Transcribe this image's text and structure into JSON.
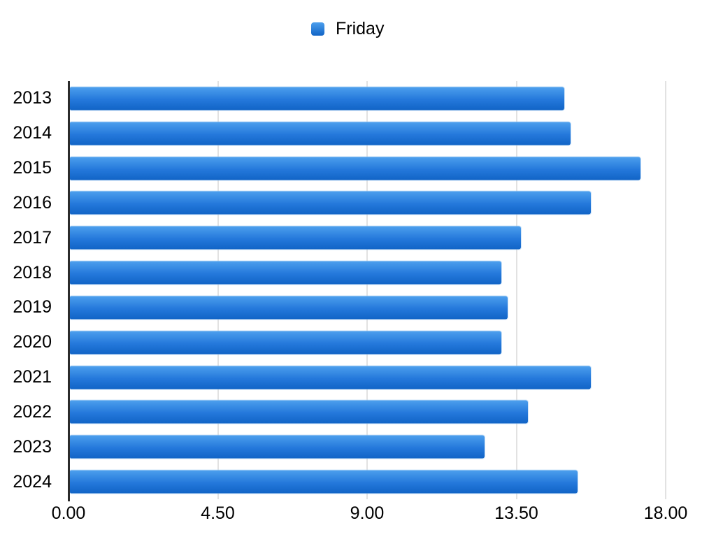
{
  "legend": {
    "label": "Friday",
    "swatch_gradient_top": "#4C9FED",
    "swatch_gradient_bottom": "#1164C6"
  },
  "chart_data": {
    "type": "bar",
    "orientation": "horizontal",
    "title": "",
    "xlabel": "",
    "ylabel": "",
    "categories": [
      "2013",
      "2014",
      "2015",
      "2016",
      "2017",
      "2018",
      "2019",
      "2020",
      "2021",
      "2022",
      "2023",
      "2024"
    ],
    "series": [
      {
        "name": "Friday",
        "values": [
          14.9,
          15.1,
          17.2,
          15.7,
          13.6,
          13.0,
          13.2,
          13.0,
          15.7,
          13.8,
          12.5,
          15.3
        ]
      }
    ],
    "xlim": [
      0,
      18
    ],
    "x_ticks": [
      {
        "label": "0.00",
        "value": 0
      },
      {
        "label": "4.50",
        "value": 4.5
      },
      {
        "label": "9.00",
        "value": 9
      },
      {
        "label": "13.50",
        "value": 13.5
      },
      {
        "label": "18.00",
        "value": 18
      }
    ],
    "grid": "vertical-only",
    "legend_position": "top-center",
    "bar_gradient": [
      "#4C9FED",
      "#1164C6"
    ],
    "gridline_color": "#e2e2e2",
    "axis_line_color": "#2b2b2b",
    "text_color": "#000000",
    "background_color": "#ffffff"
  }
}
